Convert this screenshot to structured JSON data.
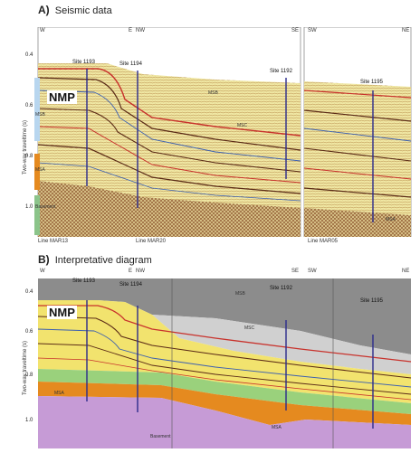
{
  "panel_a": {
    "letter": "A)",
    "title": "Seismic data",
    "nmp": "NMP",
    "ylabel": "Two-way traveltime (s)",
    "ticks": [
      "0.4",
      "0.6",
      "0.8",
      "1.0"
    ],
    "sections": [
      {
        "left": "W",
        "right": "E"
      },
      {
        "left": "NW",
        "right": "SE"
      },
      {
        "left": "SW",
        "right": "NE"
      }
    ],
    "lines": [
      "Line MAR13",
      "Line MAR20",
      "Line MAR05"
    ],
    "sites": [
      "Site 1193",
      "Site 1194",
      "Site 1192",
      "Site 1195"
    ],
    "units": [
      "MSB",
      "MSC",
      "MSB",
      "MSA",
      "Basement",
      "MSA"
    ]
  },
  "panel_b": {
    "letter": "B)",
    "title": "Interpretative diagram",
    "nmp": "NMP",
    "ylabel": "Two-way traveltime (s)",
    "ticks": [
      "0.4",
      "0.6",
      "0.8",
      "1.0"
    ],
    "sections": [
      {
        "left": "W",
        "right": "E"
      },
      {
        "left": "NW",
        "right": "SE"
      },
      {
        "left": "SW",
        "right": "NE"
      }
    ],
    "sites": [
      "Site 1193",
      "Site 1194",
      "Site 1192",
      "Site 1195"
    ],
    "units": [
      "MSB",
      "MSC",
      "MSA",
      "MSA",
      "Basement"
    ]
  },
  "colors": {
    "seismic_bg": "#efe6a2",
    "seismic_dark": "#5a2a16",
    "interp_msb_gray": "#8c8c8c",
    "interp_msc_light": "#d0d0d0",
    "interp_green": "#9ad17c",
    "interp_orange": "#e58a1f",
    "interp_basement": "#c69bd6",
    "site_line": "#2b2b8c",
    "horizon_red": "#c8322c",
    "horizon_blue": "#3b5fb0"
  }
}
